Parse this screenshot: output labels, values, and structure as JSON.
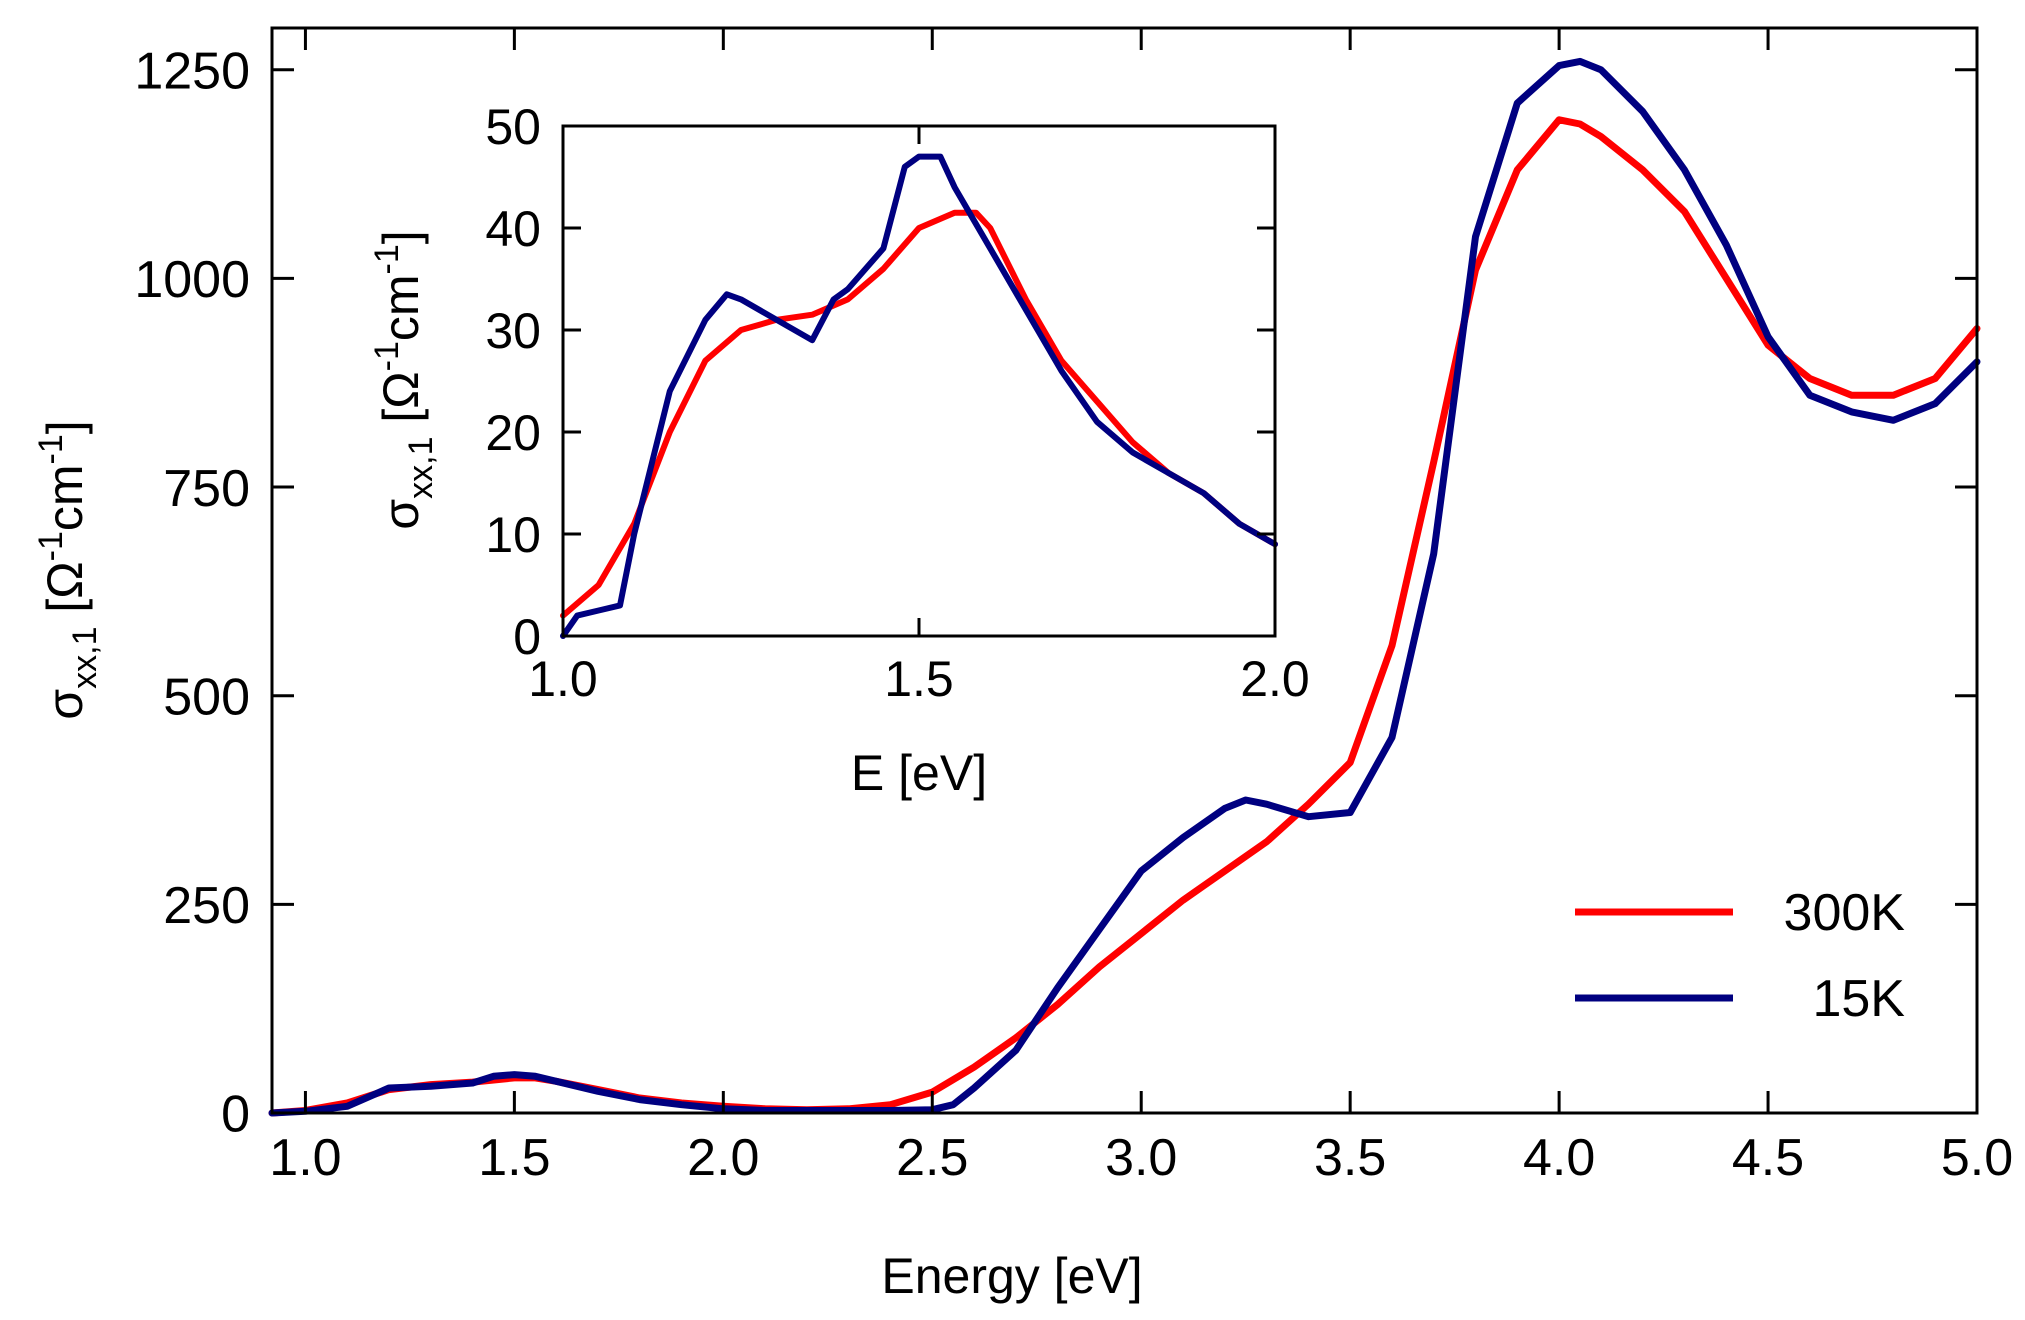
{
  "chart_data": [
    {
      "type": "line",
      "xlabel": "Energy [eV]",
      "ylabel": "σ_xx,1 [Ω^-1 cm^-1]",
      "xlim": [
        0.92,
        5.0
      ],
      "ylim": [
        0,
        1300
      ],
      "xticks": [
        1.0,
        1.5,
        2.0,
        2.5,
        3.0,
        3.5,
        4.0,
        4.5,
        5.0
      ],
      "xtick_labels": [
        "1.0",
        "1.5",
        "2.0",
        "2.5",
        "3.0",
        "3.5",
        "4.0",
        "4.5",
        "5.0"
      ],
      "yticks": [
        0,
        250,
        500,
        750,
        1000,
        1250
      ],
      "ytick_labels": [
        "0",
        "250",
        "500",
        "750",
        "1000",
        "1250"
      ],
      "legend": {
        "position": "bottom-right",
        "entries": [
          "300K",
          "15K"
        ]
      },
      "series": [
        {
          "name": "300K",
          "color": "#ff0000",
          "points": [
            [
              0.92,
              0
            ],
            [
              1.0,
              3
            ],
            [
              1.1,
              12
            ],
            [
              1.2,
              28
            ],
            [
              1.3,
              34
            ],
            [
              1.4,
              37
            ],
            [
              1.5,
              42
            ],
            [
              1.55,
              42
            ],
            [
              1.6,
              38
            ],
            [
              1.7,
              28
            ],
            [
              1.8,
              18
            ],
            [
              1.9,
              12
            ],
            [
              2.0,
              8
            ],
            [
              2.1,
              5
            ],
            [
              2.2,
              4
            ],
            [
              2.3,
              5
            ],
            [
              2.4,
              10
            ],
            [
              2.5,
              25
            ],
            [
              2.6,
              55
            ],
            [
              2.7,
              90
            ],
            [
              2.8,
              130
            ],
            [
              2.9,
              175
            ],
            [
              3.0,
              215
            ],
            [
              3.1,
              255
            ],
            [
              3.2,
              290
            ],
            [
              3.3,
              325
            ],
            [
              3.4,
              370
            ],
            [
              3.5,
              420
            ],
            [
              3.6,
              560
            ],
            [
              3.7,
              780
            ],
            [
              3.8,
              1010
            ],
            [
              3.9,
              1130
            ],
            [
              4.0,
              1190
            ],
            [
              4.05,
              1185
            ],
            [
              4.1,
              1170
            ],
            [
              4.2,
              1130
            ],
            [
              4.3,
              1080
            ],
            [
              4.4,
              1000
            ],
            [
              4.5,
              920
            ],
            [
              4.6,
              880
            ],
            [
              4.7,
              860
            ],
            [
              4.8,
              860
            ],
            [
              4.9,
              880
            ],
            [
              5.0,
              940
            ]
          ]
        },
        {
          "name": "15K",
          "color": "#000080",
          "points": [
            [
              0.92,
              0
            ],
            [
              1.0,
              2
            ],
            [
              1.1,
              8
            ],
            [
              1.2,
              30
            ],
            [
              1.3,
              32
            ],
            [
              1.4,
              36
            ],
            [
              1.45,
              44
            ],
            [
              1.5,
              46
            ],
            [
              1.55,
              44
            ],
            [
              1.6,
              38
            ],
            [
              1.7,
              26
            ],
            [
              1.8,
              16
            ],
            [
              1.9,
              10
            ],
            [
              2.0,
              5
            ],
            [
              2.1,
              3
            ],
            [
              2.2,
              3
            ],
            [
              2.3,
              3
            ],
            [
              2.4,
              3
            ],
            [
              2.5,
              4
            ],
            [
              2.55,
              10
            ],
            [
              2.6,
              30
            ],
            [
              2.7,
              75
            ],
            [
              2.8,
              150
            ],
            [
              2.9,
              220
            ],
            [
              3.0,
              290
            ],
            [
              3.1,
              330
            ],
            [
              3.2,
              365
            ],
            [
              3.25,
              375
            ],
            [
              3.3,
              370
            ],
            [
              3.4,
              355
            ],
            [
              3.5,
              360
            ],
            [
              3.6,
              450
            ],
            [
              3.7,
              670
            ],
            [
              3.8,
              1050
            ],
            [
              3.9,
              1210
            ],
            [
              4.0,
              1255
            ],
            [
              4.05,
              1260
            ],
            [
              4.1,
              1250
            ],
            [
              4.2,
              1200
            ],
            [
              4.3,
              1130
            ],
            [
              4.4,
              1040
            ],
            [
              4.5,
              930
            ],
            [
              4.6,
              860
            ],
            [
              4.7,
              840
            ],
            [
              4.8,
              830
            ],
            [
              4.9,
              850
            ],
            [
              5.0,
              900
            ]
          ]
        }
      ]
    },
    {
      "type": "line",
      "inset": true,
      "xlabel": "E [eV]",
      "ylabel": "σ_xx,1 [Ω^-1 cm^-1]",
      "xlim": [
        1.0,
        2.0
      ],
      "ylim": [
        0,
        50
      ],
      "xticks": [
        1.0,
        1.5,
        2.0
      ],
      "xtick_labels": [
        "1.0",
        "1.5",
        "2.0"
      ],
      "yticks": [
        0,
        10,
        20,
        30,
        40,
        50
      ],
      "ytick_labels": [
        "0",
        "10",
        "20",
        "30",
        "40",
        "50"
      ],
      "series": [
        {
          "name": "300K",
          "color": "#ff0000",
          "points": [
            [
              1.0,
              2
            ],
            [
              1.05,
              5
            ],
            [
              1.1,
              11
            ],
            [
              1.15,
              20
            ],
            [
              1.2,
              27
            ],
            [
              1.25,
              30
            ],
            [
              1.3,
              31
            ],
            [
              1.35,
              31.5
            ],
            [
              1.4,
              33
            ],
            [
              1.45,
              36
            ],
            [
              1.5,
              40
            ],
            [
              1.55,
              41.5
            ],
            [
              1.58,
              41.5
            ],
            [
              1.6,
              40
            ],
            [
              1.65,
              33
            ],
            [
              1.7,
              27
            ],
            [
              1.75,
              23
            ],
            [
              1.8,
              19
            ],
            [
              1.85,
              16
            ],
            [
              1.9,
              14
            ],
            [
              1.95,
              11
            ],
            [
              2.0,
              9
            ]
          ]
        },
        {
          "name": "15K",
          "color": "#000080",
          "points": [
            [
              1.0,
              0
            ],
            [
              1.02,
              2
            ],
            [
              1.05,
              2.5
            ],
            [
              1.08,
              3
            ],
            [
              1.1,
              10
            ],
            [
              1.15,
              24
            ],
            [
              1.2,
              31
            ],
            [
              1.23,
              33.5
            ],
            [
              1.25,
              33
            ],
            [
              1.3,
              31
            ],
            [
              1.35,
              29
            ],
            [
              1.38,
              33
            ],
            [
              1.4,
              34
            ],
            [
              1.45,
              38
            ],
            [
              1.48,
              46
            ],
            [
              1.5,
              47
            ],
            [
              1.53,
              47
            ],
            [
              1.55,
              44
            ],
            [
              1.6,
              38
            ],
            [
              1.65,
              32
            ],
            [
              1.7,
              26
            ],
            [
              1.75,
              21
            ],
            [
              1.8,
              18
            ],
            [
              1.85,
              16
            ],
            [
              1.9,
              14
            ],
            [
              1.95,
              11
            ],
            [
              2.0,
              9
            ]
          ]
        }
      ]
    }
  ]
}
